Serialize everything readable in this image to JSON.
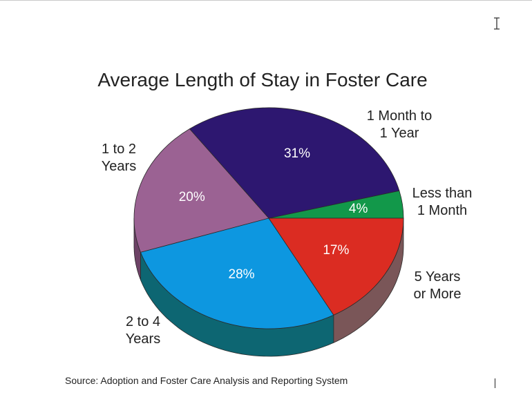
{
  "chart_data": {
    "type": "pie",
    "title": "Average Length of Stay in Foster Care",
    "slices": [
      {
        "label": "Less than\n1 Month",
        "value": 4,
        "value_label": "4%",
        "color": "#12984a",
        "side": "#0a5a2a"
      },
      {
        "label": "1 Month to\n1 Year",
        "value": 31,
        "value_label": "31%",
        "color": "#2d1770",
        "side": "#1a0d44"
      },
      {
        "label": "1 to 2\nYears",
        "value": 20,
        "value_label": "20%",
        "color": "#9b6293",
        "side": "#6d4266"
      },
      {
        "label": "2 to 4\nYears",
        "value": 28,
        "value_label": "28%",
        "color": "#0d97e0",
        "side": "#0d6672"
      },
      {
        "label": "5 Years\nor More",
        "value": 17,
        "value_label": "17%",
        "color": "#db2c22",
        "side": "#7a5658"
      }
    ],
    "note": "Source: Adoption and Foster Care Analysis and Reporting System",
    "legend": "none",
    "style": "3d-tilted"
  }
}
